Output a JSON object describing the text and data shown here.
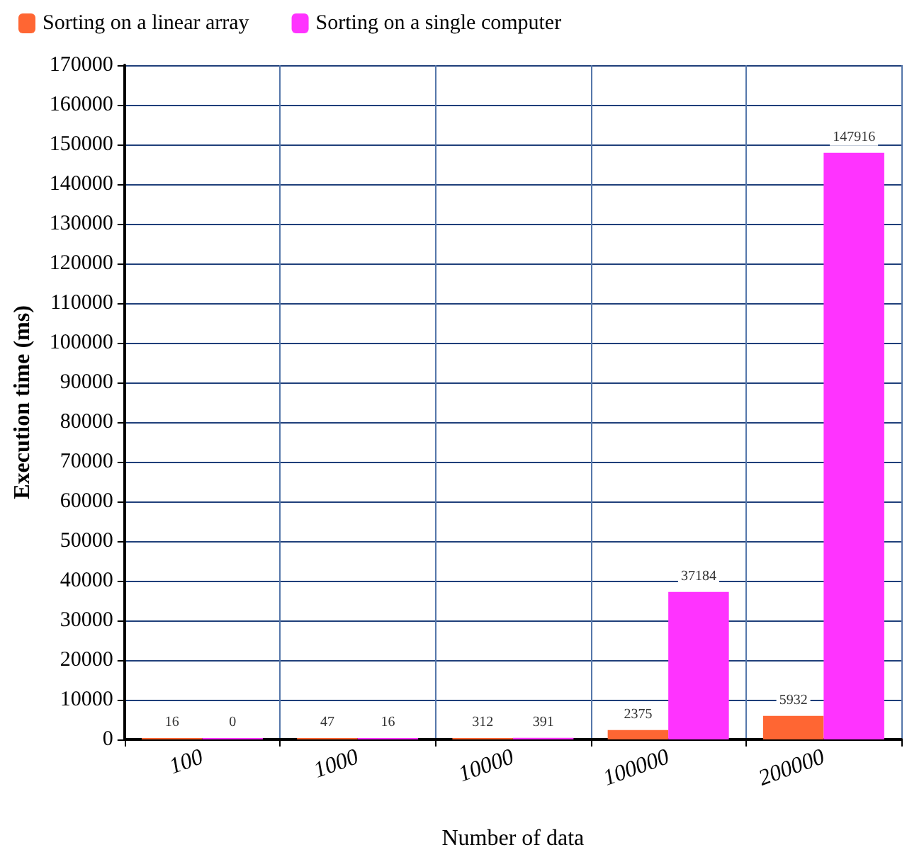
{
  "chart_data": {
    "type": "bar",
    "xlabel": "Number of data",
    "ylabel": "Execution time (ms)",
    "categories": [
      "100",
      "1000",
      "10000",
      "100000",
      "200000"
    ],
    "series": [
      {
        "name": "Sorting on a linear array",
        "color": "#ff6633",
        "values": [
          16,
          47,
          312,
          2375,
          5932
        ]
      },
      {
        "name": "Sorting on a single computer",
        "color": "#ff33ff",
        "values": [
          0,
          16,
          391,
          37184,
          147916
        ]
      }
    ],
    "ylim": [
      0,
      170000
    ],
    "yticks": [
      0,
      10000,
      20000,
      30000,
      40000,
      50000,
      60000,
      70000,
      80000,
      90000,
      100000,
      110000,
      120000,
      130000,
      140000,
      150000,
      160000,
      170000
    ],
    "grid": true,
    "legend": "top left",
    "data_labels": true
  }
}
